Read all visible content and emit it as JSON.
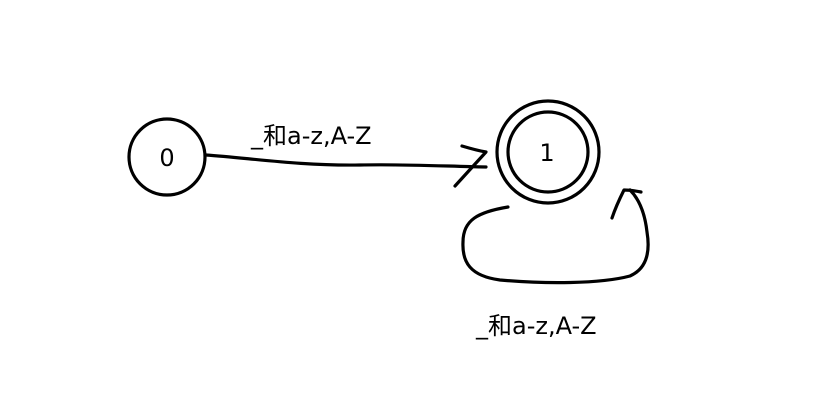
{
  "states": [
    {
      "id": "0",
      "label": "0",
      "accepting": false
    },
    {
      "id": "1",
      "label": "1",
      "accepting": true
    }
  ],
  "transitions": [
    {
      "from": "0",
      "to": "1",
      "label": "_和a-z,A-Z"
    },
    {
      "from": "1",
      "to": "1",
      "label": "_和a-z,A-Z"
    }
  ]
}
